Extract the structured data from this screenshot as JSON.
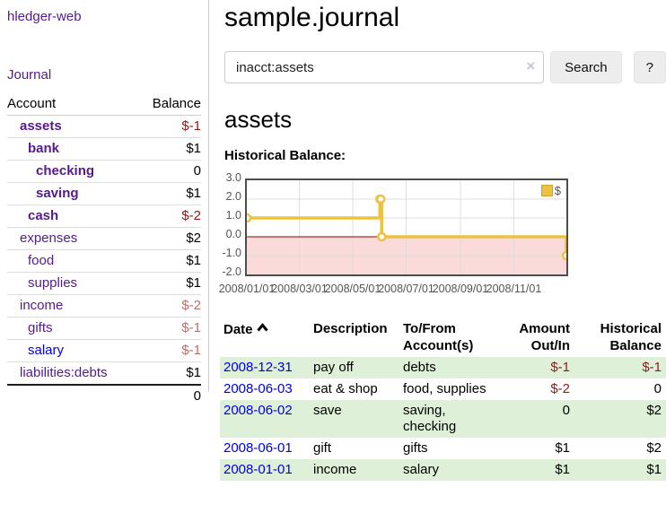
{
  "app": {
    "brand": "hledger-web",
    "nav_journal": "Journal"
  },
  "colors": {
    "purple": "#551a8b",
    "blue": "#0000e0",
    "neg_strong": "#8b1a1a",
    "neg_faded": "#b86f6f",
    "row_green": "#dff0d8",
    "chart_line": "#edc240",
    "chart_negative_fill": "#fbdada",
    "chart_zero_line": "#8b0000"
  },
  "sidebar": {
    "accounts_header": {
      "account": "Account",
      "balance": "Balance"
    },
    "accounts": [
      {
        "name": "assets",
        "indent": 1,
        "bold": true,
        "link_color": "purple",
        "balance": "$-1",
        "balance_class": "neg-strong"
      },
      {
        "name": "bank",
        "indent": 2,
        "bold": true,
        "link_color": "purple",
        "balance": "$1",
        "balance_class": "pos"
      },
      {
        "name": "checking",
        "indent": 3,
        "bold": true,
        "link_color": "purple",
        "balance": "0",
        "balance_class": "pos"
      },
      {
        "name": "saving",
        "indent": 3,
        "bold": true,
        "link_color": "purple",
        "balance": "$1",
        "balance_class": "pos"
      },
      {
        "name": "cash",
        "indent": 2,
        "bold": true,
        "link_color": "purple",
        "balance": "$-2",
        "balance_class": "neg-strong"
      },
      {
        "name": "expenses",
        "indent": 1,
        "bold": false,
        "link_color": "purple",
        "balance": "$2",
        "balance_class": "pos"
      },
      {
        "name": "food",
        "indent": 2,
        "bold": false,
        "link_color": "purple",
        "balance": "$1",
        "balance_class": "pos"
      },
      {
        "name": "supplies",
        "indent": 2,
        "bold": false,
        "link_color": "purple",
        "balance": "$1",
        "balance_class": "pos"
      },
      {
        "name": "income",
        "indent": 1,
        "bold": false,
        "link_color": "purple",
        "balance": "$-2",
        "balance_class": "neg-faded"
      },
      {
        "name": "gifts",
        "indent": 2,
        "bold": false,
        "link_color": "purple",
        "balance": "$-1",
        "balance_class": "neg-faded"
      },
      {
        "name": "salary",
        "indent": 2,
        "bold": false,
        "link_color": "blue",
        "balance": "$-1",
        "balance_class": "neg-faded"
      },
      {
        "name": "liabilities:debts",
        "indent": 1,
        "bold": false,
        "link_color": "purple",
        "balance": "$1",
        "balance_class": "pos"
      }
    ],
    "total": "0"
  },
  "header": {
    "title": "sample.journal"
  },
  "search": {
    "query": "inacct:assets",
    "clear_icon": "×",
    "button": "Search",
    "help_button": "?"
  },
  "account_page": {
    "title": "assets",
    "chart_label": "Historical Balance:"
  },
  "chart_data": {
    "type": "line",
    "title": "Historical Balance:",
    "series": [
      {
        "name": "$",
        "color": "#edc240",
        "style": "step",
        "points": [
          {
            "date": "2008-01-01",
            "value": 1
          },
          {
            "date": "2008-06-01",
            "value": 2
          },
          {
            "date": "2008-06-02",
            "value": 2
          },
          {
            "date": "2008-06-03",
            "value": 0
          },
          {
            "date": "2008-12-31",
            "value": -1
          }
        ]
      }
    ],
    "ylim": [
      -2,
      3
    ],
    "ytick_labels": [
      "3.0",
      "2.0",
      "1.0",
      "0.0",
      "-1.0",
      "-2.0"
    ],
    "yticks": [
      3,
      2,
      1,
      0,
      -1,
      -2
    ],
    "xtick_labels": [
      "2008/01/01",
      "2008/03/01",
      "2008/05/01",
      "2008/07/01",
      "2008/09/01",
      "2008/11/01"
    ],
    "xtick_dates": [
      "2008-01-01",
      "2008-03-01",
      "2008-05-01",
      "2008-07-01",
      "2008-09-01",
      "2008-11-01"
    ],
    "x_range": [
      "2008-01-01",
      "2008-12-31"
    ],
    "grid": true,
    "legend_position": "top-right",
    "negative_region_shaded": true,
    "zero_line": true
  },
  "register": {
    "columns": [
      "Date",
      "Description",
      "To/From Account(s)",
      "Amount Out/In",
      "Historical Balance"
    ],
    "sort_icon": "chevron-up",
    "rows": [
      {
        "date": "2008-12-31",
        "description": "pay off",
        "accounts": "debts",
        "amount": "$-1",
        "amount_neg": true,
        "balance": "$-1",
        "balance_neg": true,
        "green": true
      },
      {
        "date": "2008-06-03",
        "description": "eat & shop",
        "accounts": "food, supplies",
        "amount": "$-2",
        "amount_neg": true,
        "balance": "0",
        "balance_neg": false,
        "green": false
      },
      {
        "date": "2008-06-02",
        "description": "save",
        "accounts": "saving, checking",
        "amount": "0",
        "amount_neg": false,
        "balance": "$2",
        "balance_neg": false,
        "green": true
      },
      {
        "date": "2008-06-01",
        "description": "gift",
        "accounts": "gifts",
        "amount": "$1",
        "amount_neg": false,
        "balance": "$2",
        "balance_neg": false,
        "green": false
      },
      {
        "date": "2008-01-01",
        "description": "income",
        "accounts": "salary",
        "amount": "$1",
        "amount_neg": false,
        "balance": "$1",
        "balance_neg": false,
        "green": true
      }
    ]
  }
}
